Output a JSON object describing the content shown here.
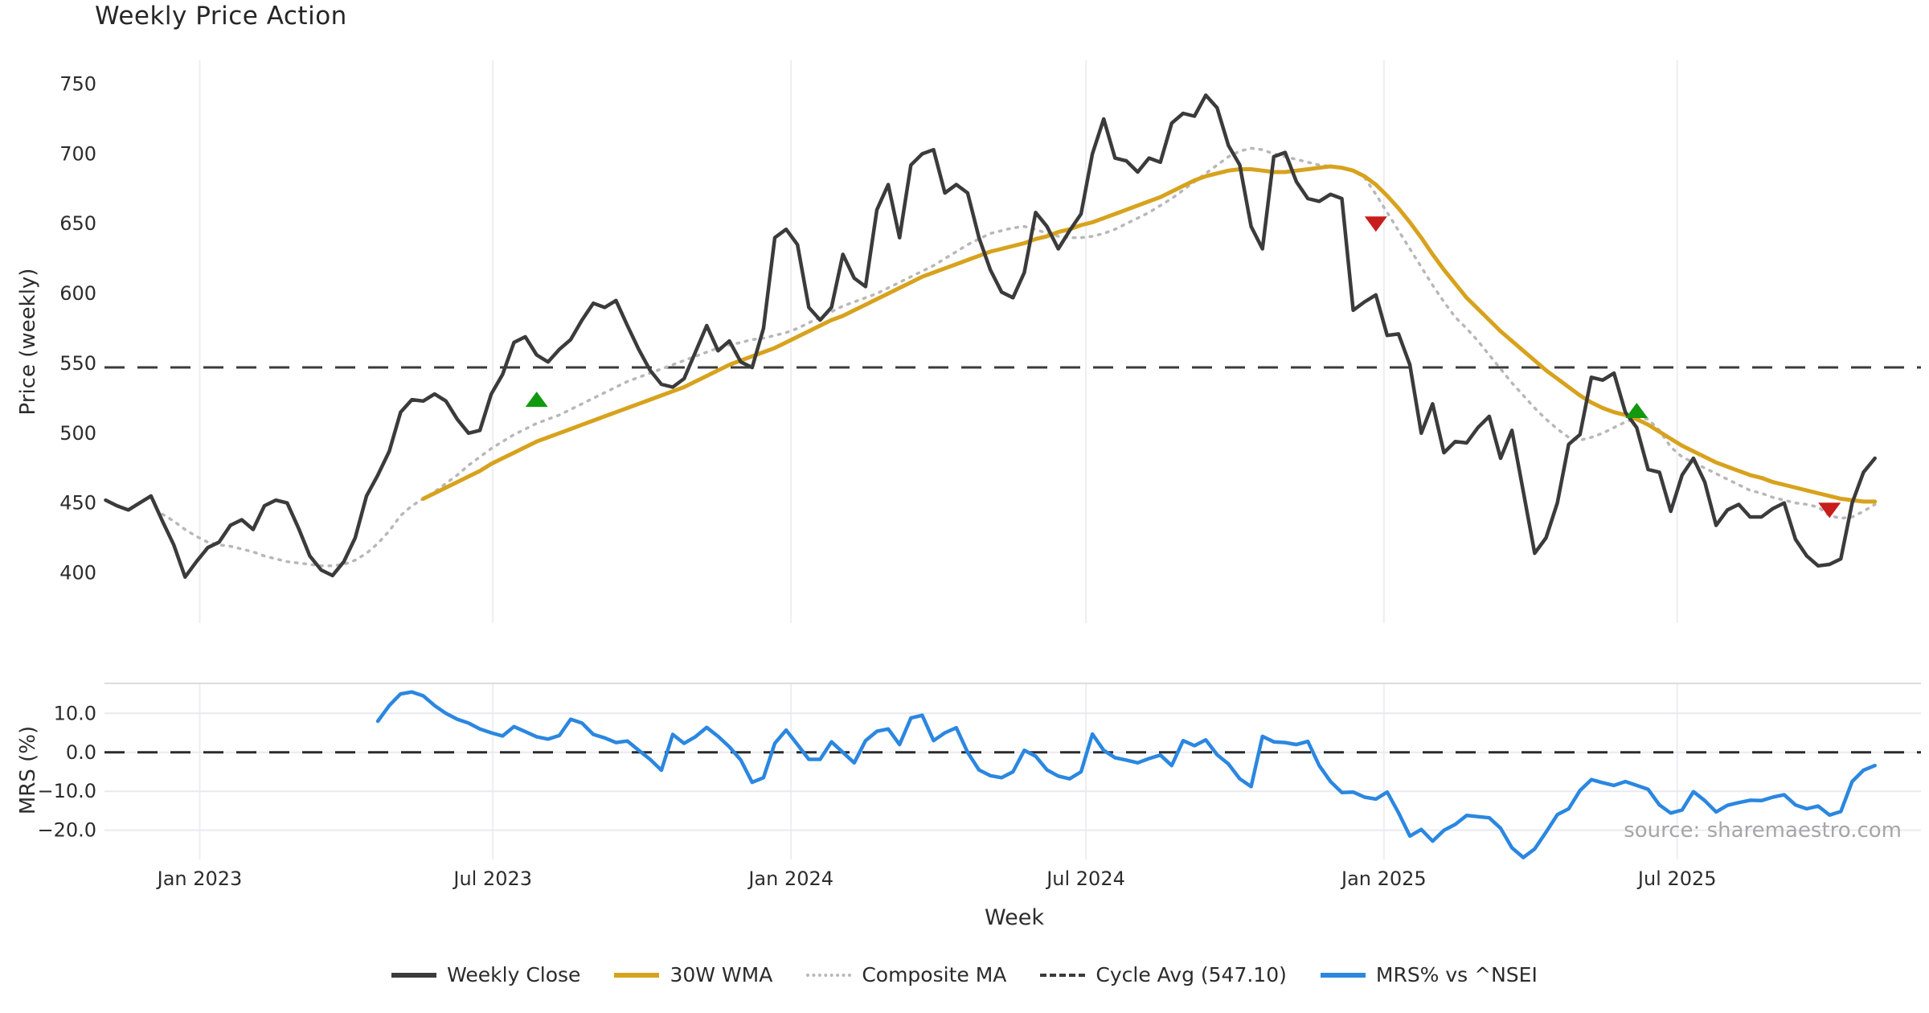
{
  "chart_data": {
    "type": "line",
    "title": "Weekly Price Action",
    "xlabel": "Week",
    "source_note": "source: sharemaestro.com",
    "x_axis": {
      "unit": "weekly",
      "start_date": "2022-11-04",
      "ticks": [
        {
          "label": "Jan 2023",
          "week": 8.29
        },
        {
          "label": "Jul 2023",
          "week": 34.14
        },
        {
          "label": "Jan 2024",
          "week": 60.43
        },
        {
          "label": "Jul 2024",
          "week": 86.43
        },
        {
          "label": "Jan 2025",
          "week": 112.71
        },
        {
          "label": "Jul 2025",
          "week": 138.57
        }
      ]
    },
    "panels": [
      {
        "name": "price",
        "ylabel": "Price (weekly)",
        "ylim": [
          364,
          767
        ],
        "yticks": [
          {
            "v": 750,
            "label": "750"
          },
          {
            "v": 700,
            "label": "700"
          },
          {
            "v": 650,
            "label": "650"
          },
          {
            "v": 600,
            "label": "600"
          },
          {
            "v": 550,
            "label": "550"
          },
          {
            "v": 500,
            "label": "500"
          },
          {
            "v": 450,
            "label": "450"
          },
          {
            "v": 400,
            "label": "400"
          }
        ]
      },
      {
        "name": "mrs",
        "ylabel": "MRS (%)",
        "ylim": [
          -27.5,
          17.7
        ],
        "yticks": [
          {
            "v": 10,
            "label": "10.0"
          },
          {
            "v": 0,
            "label": "0.0"
          },
          {
            "v": -10,
            "label": "−10.0"
          },
          {
            "v": -20,
            "label": "−20.0"
          }
        ]
      }
    ],
    "reference_lines": [
      {
        "name": "cycle_avg",
        "panel": "price",
        "value": 547.1,
        "color": "#3b3b3b",
        "style": "dashed"
      },
      {
        "name": "zero",
        "panel": "mrs",
        "value": 0,
        "color": "#2b2b2b",
        "style": "dashed"
      }
    ],
    "series": [
      {
        "name": "Weekly Close",
        "panel": "price",
        "color": "#3b3b3b",
        "style": "solid",
        "width": 4.5,
        "start_week": 0,
        "values": [
          452,
          448,
          445,
          450,
          455,
          437,
          420,
          397,
          408,
          418,
          422,
          434,
          438,
          431,
          448,
          452,
          450,
          432,
          412,
          402,
          398,
          408,
          425,
          455,
          470,
          487,
          515,
          524,
          523,
          528,
          523,
          510,
          500,
          502,
          528,
          542,
          565,
          569,
          556,
          551,
          560,
          567,
          581,
          593,
          590,
          595,
          577,
          560,
          545,
          535,
          533,
          539,
          558,
          577,
          559,
          566,
          551,
          547,
          575,
          640,
          646,
          635,
          590,
          581,
          590,
          628,
          611,
          605,
          660,
          678,
          640,
          692,
          700,
          703,
          672,
          678,
          672,
          640,
          617,
          601,
          597,
          615,
          658,
          648,
          632,
          645,
          657,
          700,
          725,
          697,
          695,
          687,
          697,
          694,
          722,
          729,
          727,
          742,
          733,
          706,
          692,
          648,
          632,
          698,
          701,
          680,
          668,
          666,
          671,
          668,
          588,
          594,
          599,
          570,
          571,
          549,
          500,
          521,
          486,
          494,
          493,
          504,
          512,
          482,
          502,
          458,
          414,
          425,
          450,
          492,
          499,
          540,
          538,
          543,
          515,
          504,
          474,
          472,
          444,
          470,
          482,
          465,
          434,
          445,
          449,
          440,
          440,
          446,
          450,
          424,
          412,
          405,
          406,
          410,
          450,
          472,
          482
        ]
      },
      {
        "name": "30W WMA",
        "panel": "price",
        "color": "#d7a21d",
        "style": "solid",
        "width": 5,
        "start_week": 28,
        "values": [
          453,
          457,
          461,
          465,
          469,
          473,
          478,
          482,
          486,
          490,
          494,
          497,
          500,
          503,
          506,
          509,
          512,
          515,
          518,
          521,
          524,
          527,
          530,
          533,
          537,
          541,
          545,
          549,
          552,
          555,
          558,
          561,
          565,
          569,
          573,
          577,
          581,
          584,
          588,
          592,
          596,
          600,
          604,
          608,
          612,
          615,
          618,
          621,
          624,
          627,
          630,
          632,
          634,
          636,
          639,
          641,
          644,
          646,
          649,
          651,
          654,
          657,
          660,
          663,
          666,
          669,
          673,
          677,
          681,
          684,
          686,
          688,
          689,
          689,
          688,
          687,
          687,
          688,
          689,
          690,
          691,
          690,
          688,
          684,
          678,
          670,
          661,
          651,
          640,
          628,
          617,
          607,
          597,
          589,
          581,
          573,
          566,
          559,
          552,
          545,
          539,
          533,
          527,
          522,
          518,
          515,
          513,
          510,
          506,
          501,
          496,
          491,
          487,
          483,
          479,
          476,
          473,
          470,
          468,
          465,
          463,
          461,
          459,
          457,
          455,
          453,
          452,
          451,
          451
        ]
      },
      {
        "name": "Composite MA",
        "panel": "price",
        "color": "#b8b8b8",
        "style": "dotted",
        "width": 3.5,
        "start_week": 5,
        "values": [
          442,
          437,
          431,
          426,
          422,
          420,
          419,
          417,
          415,
          412,
          410,
          408,
          407,
          406,
          405,
          405,
          406,
          409,
          414,
          421,
          430,
          441,
          448,
          453,
          458,
          464,
          470,
          477,
          483,
          489,
          494,
          499,
          503,
          507,
          510,
          513,
          517,
          521,
          525,
          529,
          533,
          537,
          540,
          543,
          546,
          549,
          552,
          555,
          558,
          561,
          563,
          565,
          567,
          568,
          570,
          572,
          575,
          579,
          583,
          587,
          591,
          594,
          597,
          600,
          604,
          608,
          612,
          616,
          620,
          625,
          630,
          635,
          639,
          643,
          645,
          647,
          648,
          646,
          643,
          641,
          640,
          640,
          641,
          643,
          646,
          650,
          654,
          658,
          663,
          668,
          674,
          680,
          686,
          692,
          698,
          702,
          704,
          703,
          700,
          698,
          696,
          694,
          692,
          691,
          690,
          688,
          683,
          671,
          658,
          645,
          632,
          619,
          606,
          594,
          583,
          575,
          566,
          556,
          546,
          536,
          527,
          518,
          510,
          503,
          497,
          495,
          497,
          500,
          504,
          508,
          511,
          510,
          502,
          490,
          483,
          479,
          475,
          471,
          467,
          463,
          459,
          457,
          454,
          452,
          450,
          449,
          447,
          441,
          439,
          440,
          444,
          449
        ]
      },
      {
        "name": "MRS% vs ^NSEI",
        "panel": "mrs",
        "color": "#2b87e0",
        "style": "solid",
        "width": 4.5,
        "start_week": 24,
        "values": [
          8.0,
          12.0,
          15.0,
          15.5,
          14.5,
          12.0,
          10.0,
          8.5,
          7.5,
          6.0,
          5.0,
          4.2,
          6.6,
          5.3,
          4.0,
          3.4,
          4.3,
          8.5,
          7.5,
          4.6,
          3.7,
          2.5,
          2.9,
          0.5,
          -1.8,
          -4.6,
          4.6,
          2.3,
          4.0,
          6.4,
          4.1,
          1.4,
          -2.0,
          -7.7,
          -6.5,
          2.3,
          5.7,
          2.0,
          -1.8,
          -1.8,
          2.7,
          0.0,
          -2.7,
          3.0,
          5.4,
          6.0,
          2.0,
          8.8,
          9.5,
          3.0,
          5.0,
          6.3,
          0.0,
          -4.5,
          -6.0,
          -6.5,
          -5.0,
          0.5,
          -1.0,
          -4.5,
          -6.1,
          -6.8,
          -5.0,
          4.7,
          0.5,
          -1.4,
          -2.0,
          -2.7,
          -1.6,
          -0.7,
          -3.4,
          3.0,
          1.7,
          3.2,
          -0.6,
          -3.0,
          -6.8,
          -8.8,
          4.1,
          2.7,
          2.5,
          2.0,
          2.8,
          -3.4,
          -7.5,
          -10.3,
          -10.2,
          -11.5,
          -12.0,
          -10.2,
          -15.5,
          -21.5,
          -19.8,
          -22.8,
          -20.0,
          -18.5,
          -16.2,
          -16.5,
          -16.8,
          -19.5,
          -24.5,
          -27.0,
          -24.8,
          -20.5,
          -16.0,
          -14.5,
          -9.8,
          -7.0,
          -7.8,
          -8.5,
          -7.5,
          -8.5,
          -9.5,
          -13.5,
          -15.6,
          -14.8,
          -10.1,
          -12.4,
          -15.3,
          -13.6,
          -12.9,
          -12.3,
          -12.4,
          -11.5,
          -10.9,
          -13.5,
          -14.5,
          -13.8,
          -16.1,
          -15.2,
          -7.5,
          -4.6,
          -3.4
        ]
      }
    ],
    "markers": [
      {
        "type": "buy",
        "week": 38,
        "price": 524,
        "color": "#12990f"
      },
      {
        "type": "sell",
        "week": 112,
        "price": 650,
        "color": "#c81d1d"
      },
      {
        "type": "buy",
        "week": 135,
        "price": 516,
        "color": "#12990f"
      },
      {
        "type": "sell",
        "week": 152,
        "price": 445,
        "color": "#c81d1d"
      }
    ],
    "legend": [
      {
        "label": "Weekly Close",
        "color": "#3b3b3b",
        "dash": "solid"
      },
      {
        "label": "30W WMA",
        "color": "#d7a21d",
        "dash": "solid"
      },
      {
        "label": "Composite MA",
        "color": "#b8b8b8",
        "dash": "dotted"
      },
      {
        "label": "Cycle Avg (547.10)",
        "color": "#3b3b3b",
        "dash": "dashed"
      },
      {
        "label": "MRS% vs ^NSEI",
        "color": "#2b87e0",
        "dash": "solid"
      }
    ],
    "grid": {
      "vertical": true,
      "mrs_horizontal": true,
      "color": "#ededf3"
    }
  }
}
